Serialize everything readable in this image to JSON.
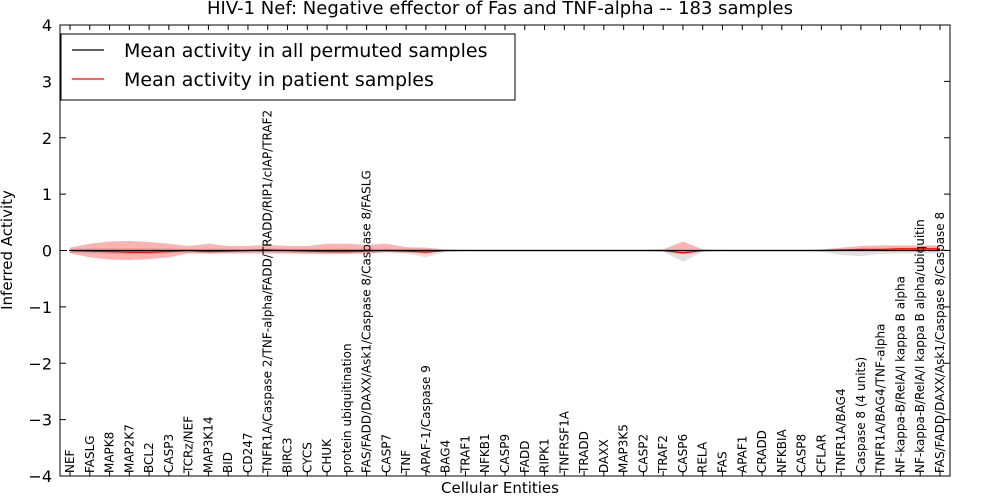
{
  "chart_data": {
    "type": "line",
    "title": "HIV-1 Nef: Negative effector of Fas and TNF-alpha -- 183 samples",
    "xlabel": "Cellular Entities",
    "ylabel": "Inferred Activity",
    "ylim": [
      -4,
      4
    ],
    "yticks": [
      -4,
      -3,
      -2,
      -1,
      0,
      1,
      2,
      3,
      4
    ],
    "legend_position": "top-left",
    "categories": [
      "NEF",
      "FASLG",
      "MAPK8",
      "MAP2K7",
      "BCL2",
      "CASP3",
      "TCRz/NEF",
      "MAP3K14",
      "BID",
      "CD247",
      "TNFR1A/Caspase 2/TNF-alpha/FADD/TRADD/RIP1/cIAP/TRAF2",
      "BIRC3",
      "CYCS",
      "CHUK",
      "protein ubiquitination",
      "FAS/FADD/DAXX/Ask1/Caspase 8/Caspase 8/FASLG",
      "CASP7",
      "TNF",
      "APAF-1/Caspase 9",
      "BAG4",
      "TRAF1",
      "NFKB1",
      "CASP9",
      "FADD",
      "RIPK1",
      "TNFRSF1A",
      "TRADD",
      "DAXX",
      "MAP3K5",
      "CASP2",
      "TRAF2",
      "CASP6",
      "RELA",
      "FAS",
      "APAF1",
      "CRADD",
      "NFKBIA",
      "CASP8",
      "CFLAR",
      "TNFR1A/BAG4",
      "Caspase 8 (4 units)",
      "TNFR1A/BAG4/TNF-alpha",
      "NF-kappa-B/RelA/I kappa B alpha",
      "NF-kappa-B/RelA/I kappa B alpha/ubiquitin",
      "FAS/FADD/DAXX/Ask1/Caspase 8/Caspase 8"
    ],
    "series": [
      {
        "name": "Mean activity in all permuted samples",
        "color": "#000000",
        "values": [
          0,
          0,
          0,
          0,
          0,
          0,
          0,
          0,
          0,
          0,
          0,
          0,
          0,
          0,
          0,
          0,
          0,
          0,
          0,
          0,
          0,
          0,
          0,
          0,
          0,
          0,
          0,
          0,
          0,
          0,
          0,
          0,
          0,
          0,
          0,
          0,
          0,
          0,
          0,
          0,
          0,
          0,
          0,
          0,
          0
        ],
        "band_low": [
          -0.04,
          -0.05,
          -0.05,
          -0.05,
          -0.05,
          -0.04,
          -0.04,
          -0.05,
          -0.04,
          -0.03,
          -0.03,
          -0.04,
          -0.05,
          -0.05,
          -0.05,
          -0.04,
          -0.03,
          -0.05,
          -0.12,
          -0.02,
          -0.01,
          -0.01,
          -0.01,
          -0.01,
          -0.01,
          -0.01,
          -0.01,
          -0.01,
          -0.01,
          -0.01,
          -0.02,
          -0.2,
          -0.02,
          -0.01,
          -0.01,
          -0.01,
          -0.01,
          -0.01,
          -0.02,
          -0.08,
          -0.1,
          -0.06,
          -0.05,
          -0.05,
          -0.05
        ],
        "band_high": [
          0.03,
          0.04,
          0.04,
          0.04,
          0.04,
          0.04,
          0.03,
          0.03,
          0.03,
          0.02,
          0.03,
          0.03,
          0.03,
          0.03,
          0.03,
          0.03,
          0.03,
          0.03,
          0.03,
          0.01,
          0.01,
          0.01,
          0.01,
          0.01,
          0.01,
          0.01,
          0.01,
          0.01,
          0.01,
          0.01,
          0.01,
          0.01,
          0.01,
          0.01,
          0.01,
          0.01,
          0.01,
          0.01,
          0.01,
          0.02,
          0.03,
          0.03,
          0.03,
          0.03,
          0.03
        ]
      },
      {
        "name": "Mean activity in patient samples",
        "color": "#ff0000",
        "values": [
          0,
          -0.01,
          -0.02,
          -0.03,
          -0.03,
          -0.02,
          0,
          -0.02,
          -0.01,
          0,
          0.01,
          0,
          -0.01,
          -0.02,
          -0.02,
          -0.01,
          0,
          -0.01,
          -0.03,
          0,
          0,
          0,
          0,
          0,
          0,
          0,
          0,
          0,
          0,
          0,
          0,
          -0.04,
          0,
          0,
          0,
          0,
          0,
          0,
          0,
          0.01,
          0.02,
          0.02,
          0.03,
          0.03,
          0.03
        ],
        "band_low": [
          -0.05,
          -0.12,
          -0.16,
          -0.17,
          -0.15,
          -0.12,
          -0.05,
          -0.05,
          -0.05,
          -0.05,
          -0.05,
          -0.05,
          -0.06,
          -0.06,
          -0.06,
          -0.05,
          -0.03,
          -0.04,
          -0.03,
          -0.02,
          -0.01,
          -0.01,
          -0.01,
          -0.01,
          -0.01,
          -0.01,
          -0.01,
          -0.01,
          -0.01,
          -0.01,
          -0.02,
          -0.06,
          -0.02,
          -0.01,
          -0.01,
          -0.01,
          -0.01,
          -0.01,
          -0.01,
          -0.01,
          -0.01,
          -0.01,
          -0.01,
          -0.01,
          -0.01
        ],
        "band_high": [
          0.05,
          0.12,
          0.16,
          0.17,
          0.15,
          0.12,
          0.08,
          0.12,
          0.08,
          0.08,
          0.1,
          0.08,
          0.08,
          0.12,
          0.12,
          0.1,
          0.12,
          0.06,
          0.05,
          0.02,
          0.01,
          0.01,
          0.01,
          0.01,
          0.01,
          0.01,
          0.01,
          0.01,
          0.01,
          0.01,
          0.02,
          0.16,
          0.02,
          0.01,
          0.01,
          0.01,
          0.01,
          0.01,
          0.02,
          0.05,
          0.08,
          0.09,
          0.09,
          0.09,
          0.09
        ]
      }
    ]
  }
}
